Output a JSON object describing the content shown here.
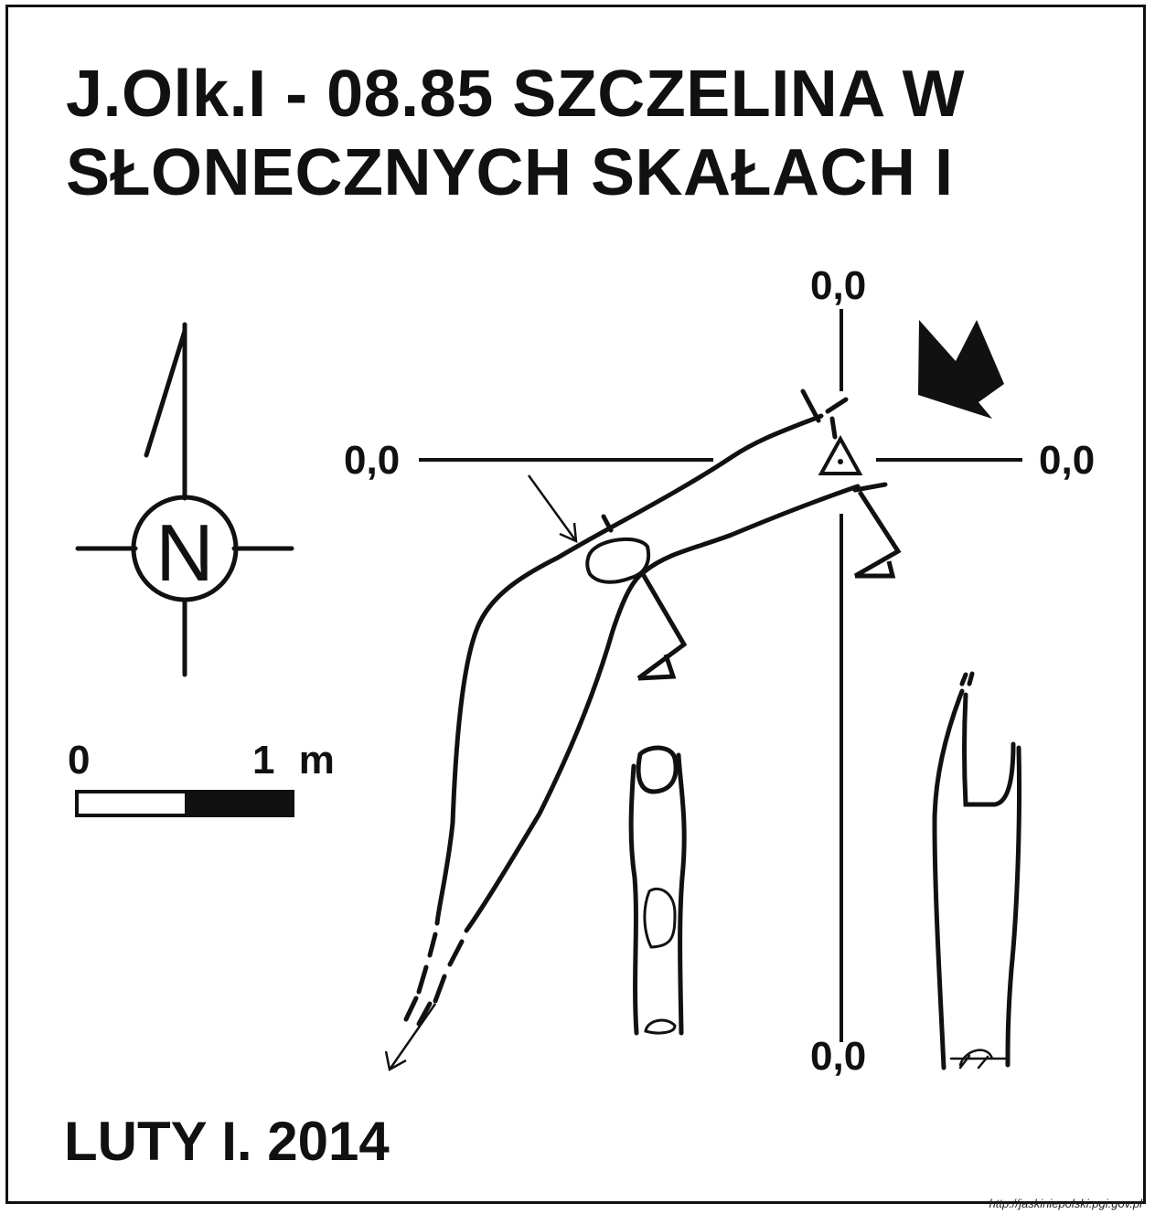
{
  "title": {
    "line1": "J.Olk.I - 08.85  SZCZELINA W",
    "line2": "SŁONECZNYCH SKAŁACH I"
  },
  "compass": {
    "letter": "N",
    "icon": "north-arrow-icon"
  },
  "scale_bar": {
    "start_label": "0",
    "end_label": "1 m"
  },
  "datum_labels": {
    "section_top": "0,0",
    "section_left": "0,0",
    "section_right": "0,0",
    "section_bottom": "0,0"
  },
  "author_date": "LUTY I. 2014",
  "source_url": "http://jaskiniepolski.pgi.gov.pl",
  "colors": {
    "ink": "#111111",
    "paper": "#ffffff"
  }
}
